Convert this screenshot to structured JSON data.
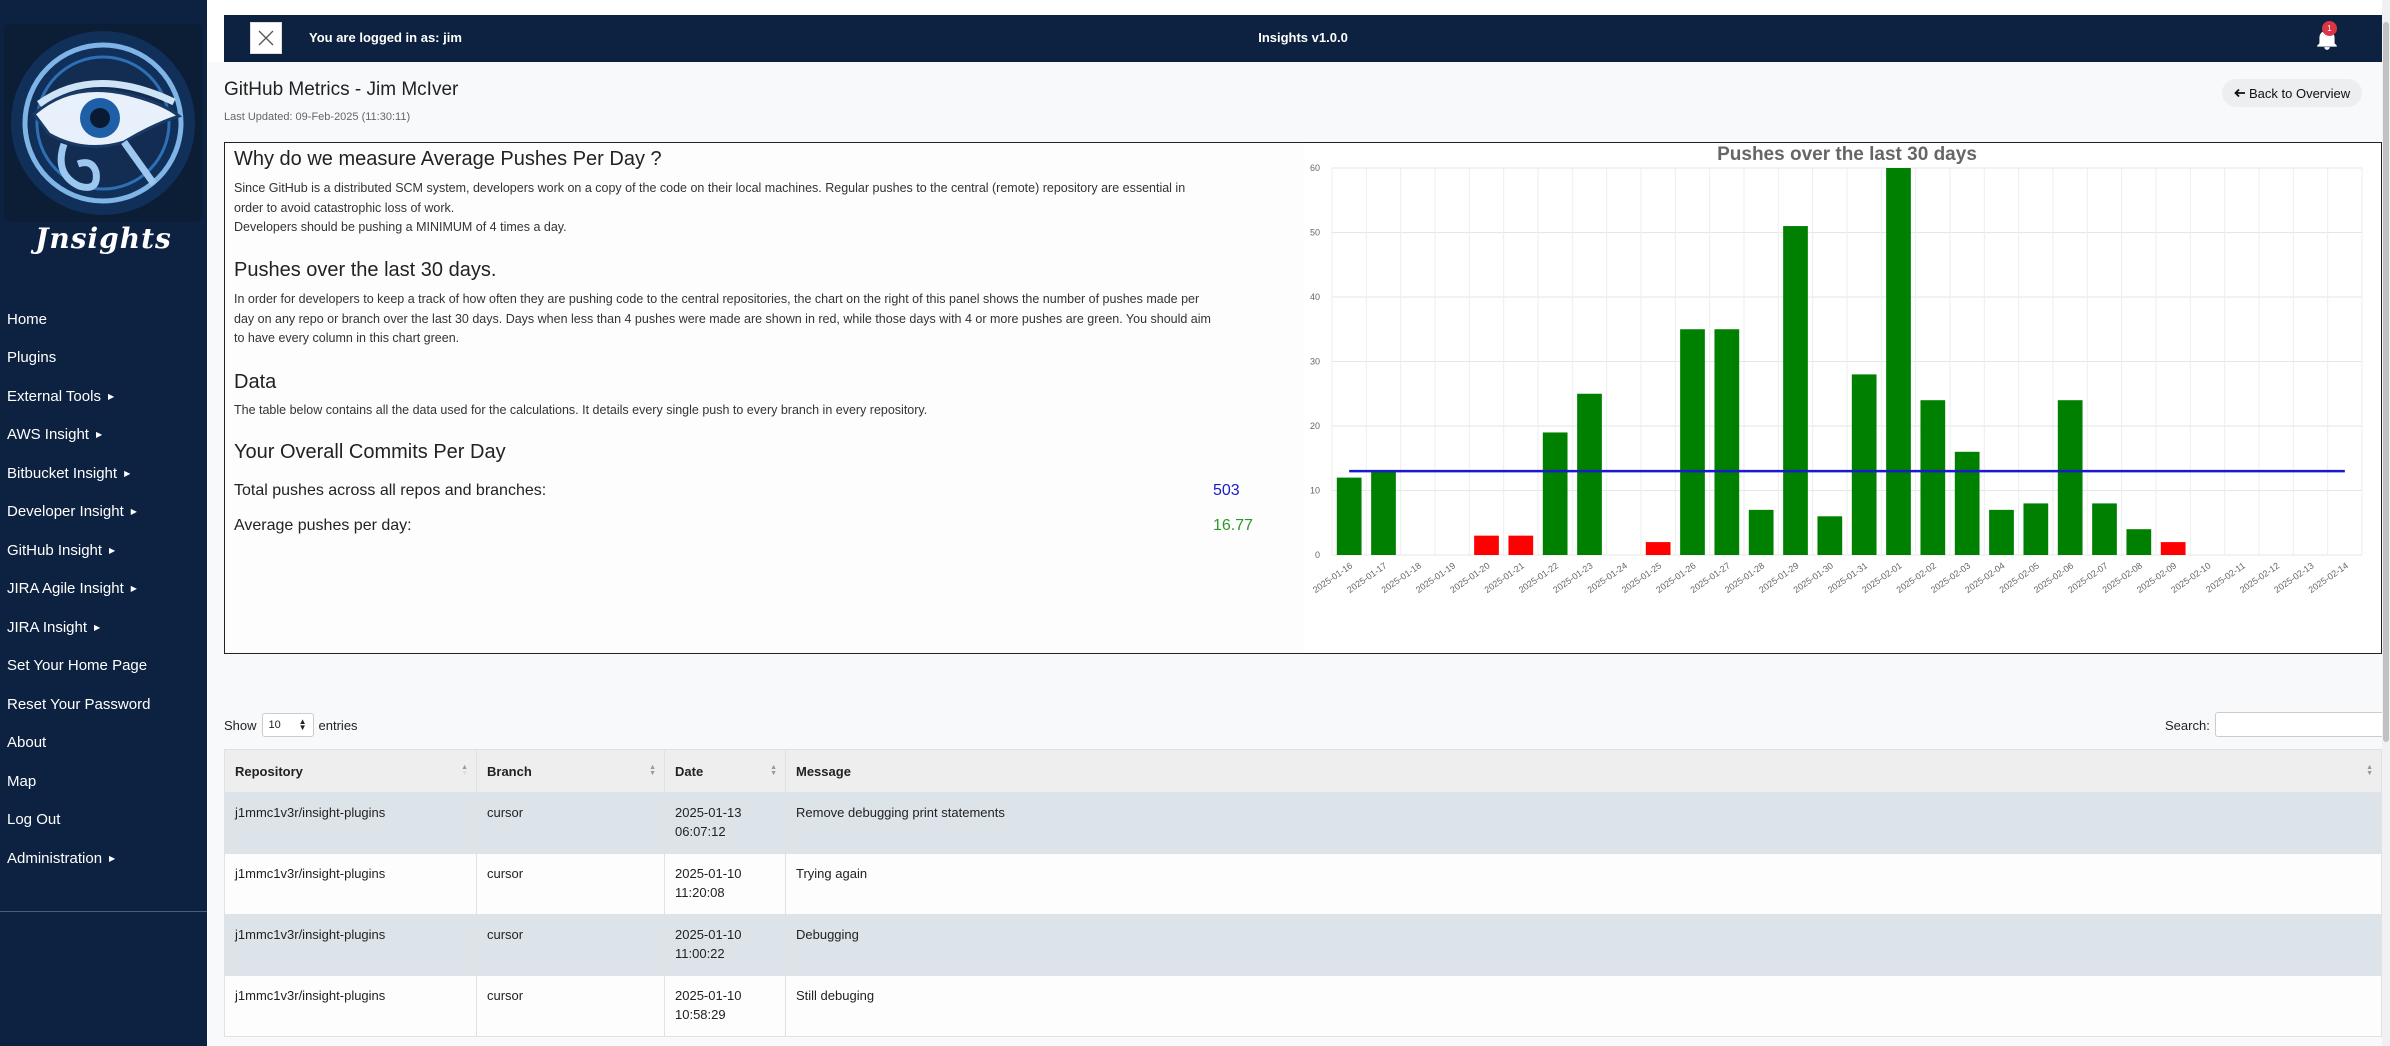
{
  "sidebar": {
    "logo_text": "Jnsights",
    "items": [
      {
        "label": "Home",
        "has_caret": false
      },
      {
        "label": "Plugins",
        "has_caret": false
      },
      {
        "label": "External Tools",
        "has_caret": true
      },
      {
        "label": "AWS Insight",
        "has_caret": true
      },
      {
        "label": "Bitbucket Insight",
        "has_caret": true
      },
      {
        "label": "Developer Insight",
        "has_caret": true
      },
      {
        "label": "GitHub Insight",
        "has_caret": true
      },
      {
        "label": "JIRA Agile Insight",
        "has_caret": true
      },
      {
        "label": "JIRA Insight",
        "has_caret": true
      },
      {
        "label": "Set Your Home Page",
        "has_caret": false
      },
      {
        "label": "Reset Your Password",
        "has_caret": false
      },
      {
        "label": "About",
        "has_caret": false
      },
      {
        "label": "Map",
        "has_caret": false
      },
      {
        "label": "Log Out",
        "has_caret": false
      },
      {
        "label": "Administration",
        "has_caret": true
      }
    ]
  },
  "topbar": {
    "logged_in": "You are logged in as: jim",
    "app_title": "Insights v1.0.0",
    "notification_count": "1"
  },
  "header": {
    "title": "GitHub Metrics - Jim McIver",
    "last_updated": "Last Updated: 09-Feb-2025 (11:30:11)",
    "back_button": "Back to Overview"
  },
  "info": {
    "h1": "Why do we measure Average Pushes Per Day ?",
    "p1": "Since GitHub is a distributed SCM system, developers work on a copy of the code on their local machines. Regular pushes to the central (remote) repository are essential in order to avoid catastrophic loss of work.",
    "p1b": "Developers should be pushing a MINIMUM of 4 times a day.",
    "h2": "Pushes over the last 30 days.",
    "p2": "In order for developers to keep a track of how often they are pushing code to the central repositories, the chart on the right of this panel shows the number of pushes made per day on any repo or branch over the last 30 days. Days when less than 4 pushes were made are shown in red, while those days with 4 or more pushes are green. You should aim to have every column in this chart green.",
    "h3": "Data",
    "p3": "The table below contains all the data used for the calculations. It details every single push to every branch in every repository.",
    "h4": "Your Overall Commits Per Day",
    "total_label": "Total pushes across all repos and branches:",
    "total_value": "503",
    "avg_label": "Average pushes per day:",
    "avg_value": "16.77"
  },
  "chart_data": {
    "type": "bar",
    "title": "Pushes over the last 30 days",
    "xlabel": "",
    "ylabel": "",
    "ylim": [
      0,
      60
    ],
    "yticks": [
      0,
      10,
      20,
      30,
      40,
      50,
      60
    ],
    "grid": true,
    "threshold": 4,
    "average_line": 13,
    "colors": {
      "above": "#008000",
      "below": "#ff0000",
      "average": "#1a1acc"
    },
    "categories": [
      "2025-01-16",
      "2025-01-17",
      "2025-01-18",
      "2025-01-19",
      "2025-01-20",
      "2025-01-21",
      "2025-01-22",
      "2025-01-23",
      "2025-01-24",
      "2025-01-25",
      "2025-01-26",
      "2025-01-27",
      "2025-01-28",
      "2025-01-29",
      "2025-01-30",
      "2025-01-31",
      "2025-02-01",
      "2025-02-02",
      "2025-02-03",
      "2025-02-04",
      "2025-02-05",
      "2025-02-06",
      "2025-02-07",
      "2025-02-08",
      "2025-02-09",
      "2025-02-10",
      "2025-02-11",
      "2025-02-12",
      "2025-02-13",
      "2025-02-14"
    ],
    "values": [
      12,
      13,
      0,
      0,
      3,
      3,
      19,
      25,
      0,
      2,
      35,
      35,
      7,
      51,
      6,
      28,
      60,
      24,
      16,
      7,
      8,
      24,
      8,
      4,
      2,
      0,
      0,
      0,
      0,
      0
    ]
  },
  "table": {
    "show_label": "Show",
    "entries_value": "10",
    "entries_label": "entries",
    "search_label": "Search:",
    "columns": [
      "Repository",
      "Branch",
      "Date",
      "Message"
    ],
    "rows": [
      {
        "repo": "j1mmc1v3r/insight-plugins",
        "branch": "cursor",
        "date": "2025-01-13",
        "time": "06:07:12",
        "message": "Remove debugging print statements"
      },
      {
        "repo": "j1mmc1v3r/insight-plugins",
        "branch": "cursor",
        "date": "2025-01-10",
        "time": "11:20:08",
        "message": "Trying again"
      },
      {
        "repo": "j1mmc1v3r/insight-plugins",
        "branch": "cursor",
        "date": "2025-01-10",
        "time": "11:00:22",
        "message": "Debugging"
      },
      {
        "repo": "j1mmc1v3r/insight-plugins",
        "branch": "cursor",
        "date": "2025-01-10",
        "time": "10:58:29",
        "message": "Still debuging"
      }
    ]
  }
}
